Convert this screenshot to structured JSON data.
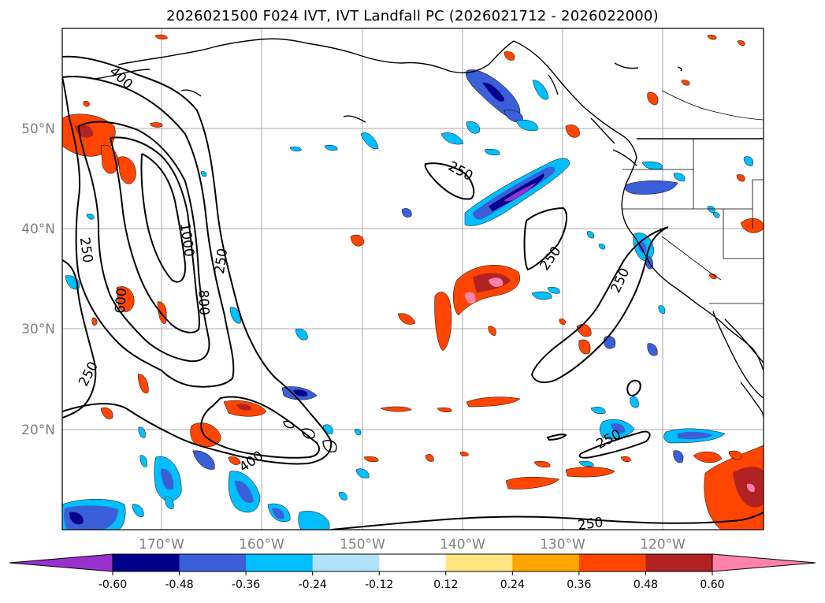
{
  "title": "2026021500 F024 IVT, IVT Landfall PC (2026021712 - 2026022000)",
  "colors": {
    "grid": "#a8a8a8",
    "coast": "#000000",
    "contour": "#000000",
    "neg_deep": "#9932cc",
    "neg_navy": "#00008b",
    "neg_blue": "#3a5fd9",
    "neg_sky": "#00bfff",
    "neg_light": "#aee3fb",
    "neutral": "#ffffff",
    "pos_yellow": "#ffe680",
    "pos_orange": "#ffa500",
    "pos_redorange": "#ff4500",
    "pos_firebrick": "#b22222",
    "pos_pink": "#ff82ab"
  },
  "map": {
    "lat_labels": [
      "50°N",
      "40°N",
      "30°N",
      "20°N"
    ],
    "lon_labels": [
      "170°W",
      "160°W",
      "150°W",
      "140°W",
      "130°W",
      "120°W"
    ],
    "contour_labels": [
      {
        "text": "400",
        "rot": 42
      },
      {
        "text": "250",
        "rot": 82
      },
      {
        "text": "1000",
        "rot": 82
      },
      {
        "text": "250",
        "rot": -82
      },
      {
        "text": "800",
        "rot": 88
      },
      {
        "text": "600",
        "rot": -85
      },
      {
        "text": "250",
        "rot": -62
      },
      {
        "text": "400",
        "rot": -35
      },
      {
        "text": "250",
        "rot": 28
      },
      {
        "text": "250",
        "rot": -55
      },
      {
        "text": "250",
        "rot": -65
      },
      {
        "text": "250",
        "rot": -28
      },
      {
        "text": "250",
        "rot": -8
      }
    ]
  },
  "colorbar": {
    "ticks": [
      "-0.60",
      "-0.48",
      "-0.36",
      "-0.24",
      "-0.12",
      "0.12",
      "0.24",
      "0.36",
      "0.48",
      "0.60"
    ],
    "bins": [
      "neg_navy",
      "neg_blue",
      "neg_sky",
      "neg_light",
      "neutral",
      "pos_yellow",
      "pos_orange",
      "pos_redorange",
      "pos_firebrick"
    ],
    "extend_min": "neg_deep",
    "extend_max": "pos_pink"
  }
}
